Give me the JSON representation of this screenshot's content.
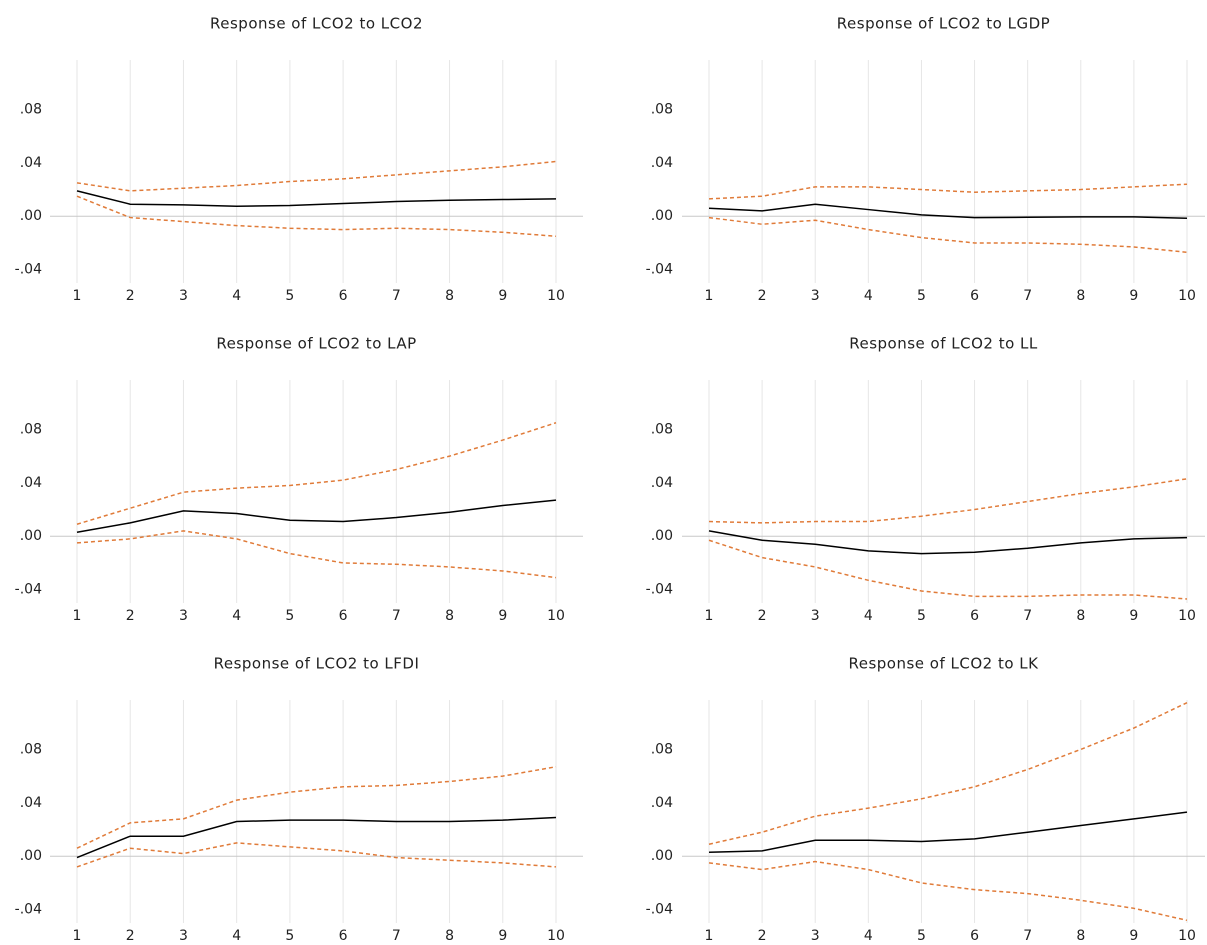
{
  "chart_data": [
    {
      "type": "line",
      "title": "Response of LCO2 to LCO2",
      "categories": [
        1,
        2,
        3,
        4,
        5,
        6,
        7,
        8,
        9,
        10
      ],
      "ylim": [
        -0.05,
        0.117
      ],
      "yticks": [
        {
          "value": -0.04,
          "label": "-.04"
        },
        {
          "value": 0,
          "label": ".00"
        },
        {
          "value": 0.04,
          "label": ".04"
        },
        {
          "value": 0.08,
          "label": ".08"
        }
      ],
      "grid": "x",
      "series": [
        {
          "color": "#000000",
          "style": "solid",
          "values": [
            0.019,
            0.009,
            0.0085,
            0.0075,
            0.008,
            0.0095,
            0.011,
            0.012,
            0.0125,
            0.013
          ]
        },
        {
          "color": "#e07b39",
          "style": "dashed",
          "values": [
            0.025,
            0.019,
            0.021,
            0.023,
            0.026,
            0.028,
            0.031,
            0.034,
            0.037,
            0.041
          ]
        },
        {
          "color": "#e07b39",
          "style": "dashed",
          "values": [
            0.015,
            -0.001,
            -0.004,
            -0.007,
            -0.009,
            -0.01,
            -0.009,
            -0.01,
            -0.012,
            -0.015
          ]
        }
      ]
    },
    {
      "type": "line",
      "title": "Response of LCO2 to LGDP",
      "categories": [
        1,
        2,
        3,
        4,
        5,
        6,
        7,
        8,
        9,
        10
      ],
      "ylim": [
        -0.05,
        0.117
      ],
      "yticks": [
        {
          "value": -0.04,
          "label": "-.04"
        },
        {
          "value": 0,
          "label": ".00"
        },
        {
          "value": 0.04,
          "label": ".04"
        },
        {
          "value": 0.08,
          "label": ".08"
        }
      ],
      "grid": "x",
      "series": [
        {
          "color": "#000000",
          "style": "solid",
          "values": [
            0.006,
            0.004,
            0.009,
            0.005,
            0.001,
            -0.001,
            -0.0008,
            -0.0005,
            -0.0005,
            -0.0015
          ]
        },
        {
          "color": "#e07b39",
          "style": "dashed",
          "values": [
            0.013,
            0.015,
            0.022,
            0.022,
            0.02,
            0.018,
            0.019,
            0.02,
            0.022,
            0.024
          ]
        },
        {
          "color": "#e07b39",
          "style": "dashed",
          "values": [
            -0.001,
            -0.006,
            -0.003,
            -0.01,
            -0.016,
            -0.02,
            -0.02,
            -0.021,
            -0.023,
            -0.027
          ]
        }
      ]
    },
    {
      "type": "line",
      "title": "Response of LCO2 to LAP",
      "categories": [
        1,
        2,
        3,
        4,
        5,
        6,
        7,
        8,
        9,
        10
      ],
      "ylim": [
        -0.05,
        0.117
      ],
      "yticks": [
        {
          "value": -0.04,
          "label": "-.04"
        },
        {
          "value": 0,
          "label": ".00"
        },
        {
          "value": 0.04,
          "label": ".04"
        },
        {
          "value": 0.08,
          "label": ".08"
        }
      ],
      "grid": "x",
      "series": [
        {
          "color": "#000000",
          "style": "solid",
          "values": [
            0.003,
            0.01,
            0.019,
            0.017,
            0.012,
            0.011,
            0.014,
            0.018,
            0.023,
            0.027
          ]
        },
        {
          "color": "#e07b39",
          "style": "dashed",
          "values": [
            0.009,
            0.021,
            0.033,
            0.036,
            0.038,
            0.042,
            0.05,
            0.06,
            0.072,
            0.085
          ]
        },
        {
          "color": "#e07b39",
          "style": "dashed",
          "values": [
            -0.005,
            -0.002,
            0.004,
            -0.002,
            -0.013,
            -0.02,
            -0.021,
            -0.023,
            -0.026,
            -0.031
          ]
        }
      ]
    },
    {
      "type": "line",
      "title": "Response of LCO2 to LL",
      "categories": [
        1,
        2,
        3,
        4,
        5,
        6,
        7,
        8,
        9,
        10
      ],
      "ylim": [
        -0.05,
        0.117
      ],
      "yticks": [
        {
          "value": -0.04,
          "label": "-.04"
        },
        {
          "value": 0,
          "label": ".00"
        },
        {
          "value": 0.04,
          "label": ".04"
        },
        {
          "value": 0.08,
          "label": ".08"
        }
      ],
      "grid": "x",
      "series": [
        {
          "color": "#000000",
          "style": "solid",
          "values": [
            0.004,
            -0.003,
            -0.006,
            -0.011,
            -0.013,
            -0.012,
            -0.009,
            -0.005,
            -0.002,
            -0.001
          ]
        },
        {
          "color": "#e07b39",
          "style": "dashed",
          "values": [
            0.011,
            0.01,
            0.011,
            0.011,
            0.015,
            0.02,
            0.026,
            0.032,
            0.037,
            0.043
          ]
        },
        {
          "color": "#e07b39",
          "style": "dashed",
          "values": [
            -0.003,
            -0.016,
            -0.023,
            -0.033,
            -0.041,
            -0.045,
            -0.045,
            -0.044,
            -0.044,
            -0.047
          ]
        }
      ]
    },
    {
      "type": "line",
      "title": "Response of LCO2 to LFDI",
      "categories": [
        1,
        2,
        3,
        4,
        5,
        6,
        7,
        8,
        9,
        10
      ],
      "ylim": [
        -0.05,
        0.117
      ],
      "yticks": [
        {
          "value": -0.04,
          "label": "-.04"
        },
        {
          "value": 0,
          "label": ".00"
        },
        {
          "value": 0.04,
          "label": ".04"
        },
        {
          "value": 0.08,
          "label": ".08"
        }
      ],
      "grid": "x",
      "series": [
        {
          "color": "#000000",
          "style": "solid",
          "values": [
            -0.001,
            0.015,
            0.015,
            0.026,
            0.027,
            0.027,
            0.026,
            0.026,
            0.027,
            0.029
          ]
        },
        {
          "color": "#e07b39",
          "style": "dashed",
          "values": [
            0.006,
            0.025,
            0.028,
            0.042,
            0.048,
            0.052,
            0.053,
            0.056,
            0.06,
            0.067
          ]
        },
        {
          "color": "#e07b39",
          "style": "dashed",
          "values": [
            -0.008,
            0.006,
            0.002,
            0.01,
            0.007,
            0.004,
            -0.001,
            -0.003,
            -0.005,
            -0.008
          ]
        }
      ]
    },
    {
      "type": "line",
      "title": "Response of LCO2 to LK",
      "categories": [
        1,
        2,
        3,
        4,
        5,
        6,
        7,
        8,
        9,
        10
      ],
      "ylim": [
        -0.05,
        0.117
      ],
      "yticks": [
        {
          "value": -0.04,
          "label": "-.04"
        },
        {
          "value": 0,
          "label": ".00"
        },
        {
          "value": 0.04,
          "label": ".04"
        },
        {
          "value": 0.08,
          "label": ".08"
        }
      ],
      "grid": "x",
      "series": [
        {
          "color": "#000000",
          "style": "solid",
          "values": [
            0.003,
            0.004,
            0.012,
            0.012,
            0.011,
            0.013,
            0.018,
            0.023,
            0.028,
            0.033
          ]
        },
        {
          "color": "#e07b39",
          "style": "dashed",
          "values": [
            0.009,
            0.018,
            0.03,
            0.036,
            0.043,
            0.052,
            0.065,
            0.08,
            0.096,
            0.115
          ]
        },
        {
          "color": "#e07b39",
          "style": "dashed",
          "values": [
            -0.005,
            -0.01,
            -0.004,
            -0.01,
            -0.02,
            -0.025,
            -0.028,
            -0.033,
            -0.039,
            -0.048
          ]
        }
      ]
    }
  ]
}
